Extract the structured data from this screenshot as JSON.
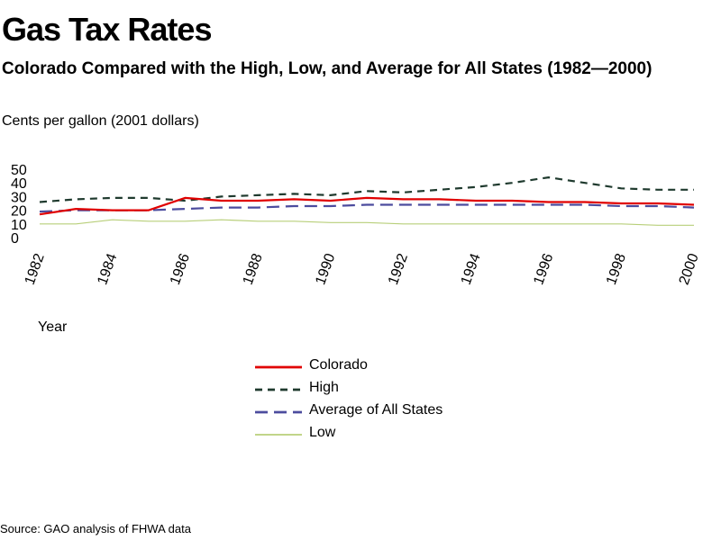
{
  "chart_data": {
    "type": "line",
    "title": "Gas Tax Rates",
    "subtitle": "Colorado Compared with the High, Low, and Average for All States (1982—2000)",
    "ylabel": "Cents per gallon (2001 dollars)",
    "xlabel": "Year",
    "x": [
      1982,
      1983,
      1984,
      1985,
      1986,
      1987,
      1988,
      1989,
      1990,
      1991,
      1992,
      1993,
      1994,
      1995,
      1996,
      1997,
      1998,
      1999,
      2000
    ],
    "x_tick_labels": [
      "1982",
      "1984",
      "1986",
      "1988",
      "1990",
      "1992",
      "1994",
      "1996",
      "1998",
      "2000"
    ],
    "y_ticks": [
      0,
      10,
      20,
      30,
      40,
      50
    ],
    "ylim": [
      0,
      50
    ],
    "xlim": [
      1982,
      2000
    ],
    "grid": false,
    "legend_position": "bottom-center",
    "series": [
      {
        "name": "Colorado",
        "color": "#e00000",
        "style": "solid",
        "values": [
          17,
          21,
          20,
          20,
          29,
          27,
          27,
          28,
          27,
          29,
          28,
          28,
          27,
          27,
          26,
          26,
          25,
          25,
          24
        ]
      },
      {
        "name": "High",
        "color": "#1f3a2e",
        "style": "dashed",
        "values": [
          26,
          28,
          29,
          29,
          27,
          30,
          31,
          32,
          31,
          34,
          33,
          35,
          37,
          40,
          44,
          40,
          36,
          35,
          35
        ]
      },
      {
        "name": "Average of All States",
        "color": "#4c4c9e",
        "style": "longdash",
        "values": [
          19,
          20,
          20,
          20,
          21,
          22,
          22,
          23,
          23,
          24,
          24,
          24,
          24,
          24,
          24,
          24,
          23,
          23,
          22
        ]
      },
      {
        "name": "Low",
        "color": "#b8cf7a",
        "style": "solid",
        "values": [
          10,
          10,
          13,
          12,
          12,
          13,
          12,
          12,
          11,
          11,
          10,
          10,
          10,
          10,
          10,
          10,
          10,
          9,
          9
        ]
      }
    ]
  },
  "source": "Source: GAO analysis of FHWA data"
}
